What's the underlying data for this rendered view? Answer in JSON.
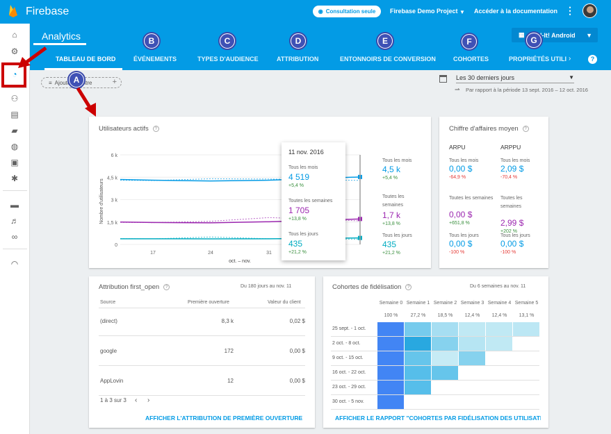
{
  "app": {
    "brand": "Firebase",
    "view_only": "Consultation seule",
    "project": "Firebase Demo Project",
    "docs": "Accéder à la documentation"
  },
  "header": {
    "section": "Analytics",
    "app_selector": "Pod-It! Android",
    "tabs": [
      "TABLEAU DE BORD",
      "ÉVÉNEMENTS",
      "TYPES D'AUDIENCE",
      "ATTRIBUTION",
      "ENTONNOIRS DE CONVERSION",
      "COHORTES",
      "PROPRIÉTÉS UTILI"
    ],
    "markers": [
      "A",
      "B",
      "C",
      "D",
      "E",
      "F",
      "G"
    ]
  },
  "toolbar": {
    "filter_label": "Ajouter un filtre",
    "date_range": "Les 30 derniers jours",
    "compare": "Par rapport à la période 13 sept. 2016 – 12 oct. 2016"
  },
  "active_users": {
    "title": "Utilisateurs actifs",
    "ylabel": "Nombre d'utilisateurs",
    "xlabel": "oct. – nov.",
    "tooltip": {
      "date": "11 nov. 2016",
      "month_label": "Tous les mois",
      "month_value": "4 519",
      "month_change": "+5,4 %",
      "week_label": "Toutes les semaines",
      "week_value": "1 705",
      "week_change": "+13,8 %",
      "day_label": "Tous les jours",
      "day_value": "435",
      "day_change": "+21,2 %"
    },
    "summary": {
      "month_label": "Tous les mois",
      "month_value": "4,5 k",
      "month_change": "+5,4 %",
      "week_label": "Toutes les semaines",
      "week_value": "1,7 k",
      "week_change": "+13,8 %",
      "day_label": "Tous les jours",
      "day_value": "435",
      "day_change": "+21,2 %"
    }
  },
  "chart_data": {
    "type": "line",
    "x": [
      "oct. 13",
      "17",
      "24",
      "31",
      "nov. 11"
    ],
    "xticks": [
      "17",
      "24",
      "31"
    ],
    "yticks": [
      "6 k",
      "4,5 k",
      "3 k",
      "1,5 k",
      "0"
    ],
    "ylim": [
      0,
      6000
    ],
    "series": [
      {
        "name": "Tous les mois",
        "color": "#039be5",
        "values": [
          4350,
          4300,
          4250,
          4300,
          4519
        ],
        "previous": [
          4300,
          4280,
          4400,
          4380,
          4290
        ]
      },
      {
        "name": "Toutes les semaines",
        "color": "#9c27b0",
        "values": [
          1500,
          1470,
          1450,
          1520,
          1705
        ],
        "previous": [
          1480,
          1460,
          1550,
          1800,
          1580
        ]
      },
      {
        "name": "Tous les jours",
        "color": "#00acc1",
        "values": [
          380,
          380,
          370,
          380,
          435
        ],
        "previous": [
          390,
          370,
          500,
          380,
          350
        ]
      }
    ]
  },
  "arpu": {
    "title": "Chiffre d'affaires moyen",
    "col1": "ARPU",
    "col2": "ARPPU",
    "rows": [
      {
        "label": "Tous les mois",
        "v1": "0,00 $",
        "c1": "-64,9 %",
        "v2": "2,09 $",
        "c2": "-70,4 %",
        "c2_pos": false
      },
      {
        "label": "Toutes les semaines",
        "v1": "0,00 $",
        "c1": "+651,8 %",
        "v2": "2,99 $",
        "c2": "+202 %",
        "c2_pos": true
      },
      {
        "label": "Tous les jours",
        "v1": "0,00 $",
        "c1": "-100 %",
        "v2": "0,00 $",
        "c2": "-100 %",
        "c2_pos": false
      }
    ]
  },
  "attribution": {
    "title": "Attribution first_open",
    "range": "Du 180 jours au nov. 11",
    "headers": [
      "Source",
      "Première ouverture",
      "Valeur du client"
    ],
    "rows": [
      {
        "source": "(direct)",
        "opens": "8,3 k",
        "value": "0,02 $"
      },
      {
        "source": "google",
        "opens": "172",
        "value": "0,00 $"
      },
      {
        "source": "AppLovin",
        "opens": "12",
        "value": "0,00 $"
      }
    ],
    "pagination": "1 à 3 sur 3",
    "link": "AFFICHER L'ATTRIBUTION DE PREMIÈRE OUVERTURE"
  },
  "cohorts": {
    "title": "Cohortes de fidélisation",
    "range": "Du 6 semaines au nov. 11",
    "weeks": [
      "Semaine 0",
      "Semaine 1",
      "Semaine 2",
      "Semaine 3",
      "Semaine 4",
      "Semaine 5"
    ],
    "avg": [
      "100 %",
      "27,2 %",
      "18,5 %",
      "12,4 %",
      "12,4 %",
      "13,1 %"
    ],
    "rows": [
      {
        "label": "25 sept. - 1 oct.",
        "levels": [
          1,
          0.35,
          0.2,
          0.12,
          0.12,
          0.13
        ]
      },
      {
        "label": "2 oct. - 8 oct.",
        "levels": [
          1,
          0.6,
          0.3,
          0.15,
          0.12
        ]
      },
      {
        "label": "9 oct. - 15 oct.",
        "levels": [
          1,
          0.4,
          0.1,
          0.3
        ]
      },
      {
        "label": "16 oct. - 22 oct.",
        "levels": [
          1,
          0.45,
          0.4
        ]
      },
      {
        "label": "23 oct. - 29 oct.",
        "levels": [
          1,
          0.45
        ]
      },
      {
        "label": "30 oct. - 5 nov.",
        "levels": [
          1
        ]
      }
    ],
    "link": "AFFICHER LE RAPPORT \"COHORTES PAR FIDÉLISATION DES UTILISATEURS"
  }
}
